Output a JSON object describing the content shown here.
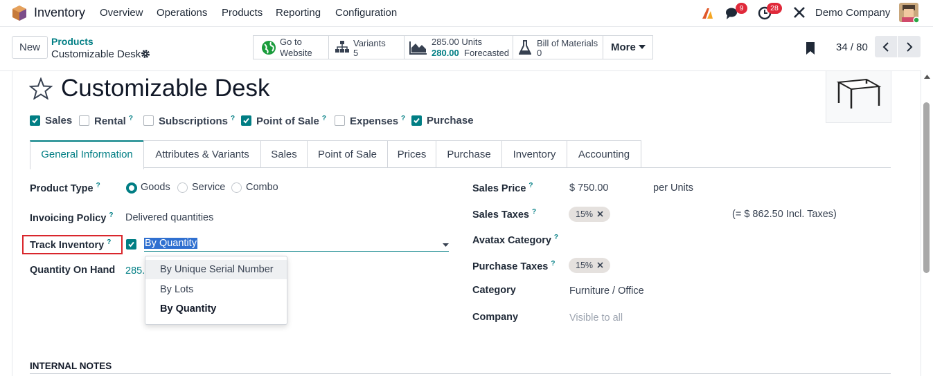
{
  "navbar": {
    "app_name": "Inventory",
    "menu": [
      "Overview",
      "Operations",
      "Products",
      "Reporting",
      "Configuration"
    ],
    "chat_count": 9,
    "activity_count": 28,
    "company": "Demo Company"
  },
  "control_panel": {
    "new_button": "New",
    "breadcrumb_parent": "Products",
    "breadcrumb_current": "Customizable Desk",
    "smart_buttons": {
      "website": {
        "line1": "Go to",
        "line2": "Website"
      },
      "variants": {
        "label": "Variants",
        "count": 5
      },
      "stock": {
        "on_hand": "285.00 Units",
        "forecasted_value": "280.00",
        "forecasted_label": "Forecasted"
      },
      "bom": {
        "label": "Bill of Materials",
        "count": 0
      }
    },
    "more": "More",
    "pager": "34 / 80"
  },
  "form": {
    "title": "Customizable Desk",
    "help_marker": "?",
    "flags": [
      {
        "label": "Sales",
        "checked": true,
        "help": false
      },
      {
        "label": "Rental",
        "checked": false,
        "help": true
      },
      {
        "label": "Subscriptions",
        "checked": false,
        "help": true
      },
      {
        "label": "Point of Sale",
        "checked": true,
        "help": true
      },
      {
        "label": "Expenses",
        "checked": false,
        "help": true
      },
      {
        "label": "Purchase",
        "checked": true,
        "help": false
      }
    ],
    "tabs": [
      "General Information",
      "Attributes & Variants",
      "Sales",
      "Point of Sale",
      "Prices",
      "Purchase",
      "Inventory",
      "Accounting"
    ],
    "active_tab": 0,
    "product_type": {
      "label": "Product Type",
      "options": [
        "Goods",
        "Service",
        "Combo"
      ],
      "selected": 0
    },
    "invoicing_policy": {
      "label": "Invoicing Policy",
      "value": "Delivered quantities"
    },
    "track_inventory": {
      "label": "Track Inventory",
      "checked": true,
      "value": "By Quantity",
      "dropdown": [
        "By Unique Serial Number",
        "By Lots",
        "By Quantity"
      ]
    },
    "quantity_on_hand": {
      "label": "Quantity On Hand",
      "value": "285."
    },
    "sales_price": {
      "label": "Sales Price",
      "value": "$ 750.00",
      "unit": "per Units"
    },
    "sales_taxes": {
      "label": "Sales Taxes",
      "tag": "15%",
      "note": "(= $ 862.50 Incl. Taxes)"
    },
    "avatax_category": {
      "label": "Avatax Category"
    },
    "purchase_taxes": {
      "label": "Purchase Taxes",
      "tag": "15%"
    },
    "category": {
      "label": "Category",
      "value": "Furniture / Office"
    },
    "company": {
      "label": "Company",
      "placeholder": "Visible to all"
    },
    "internal_notes": "INTERNAL NOTES"
  }
}
